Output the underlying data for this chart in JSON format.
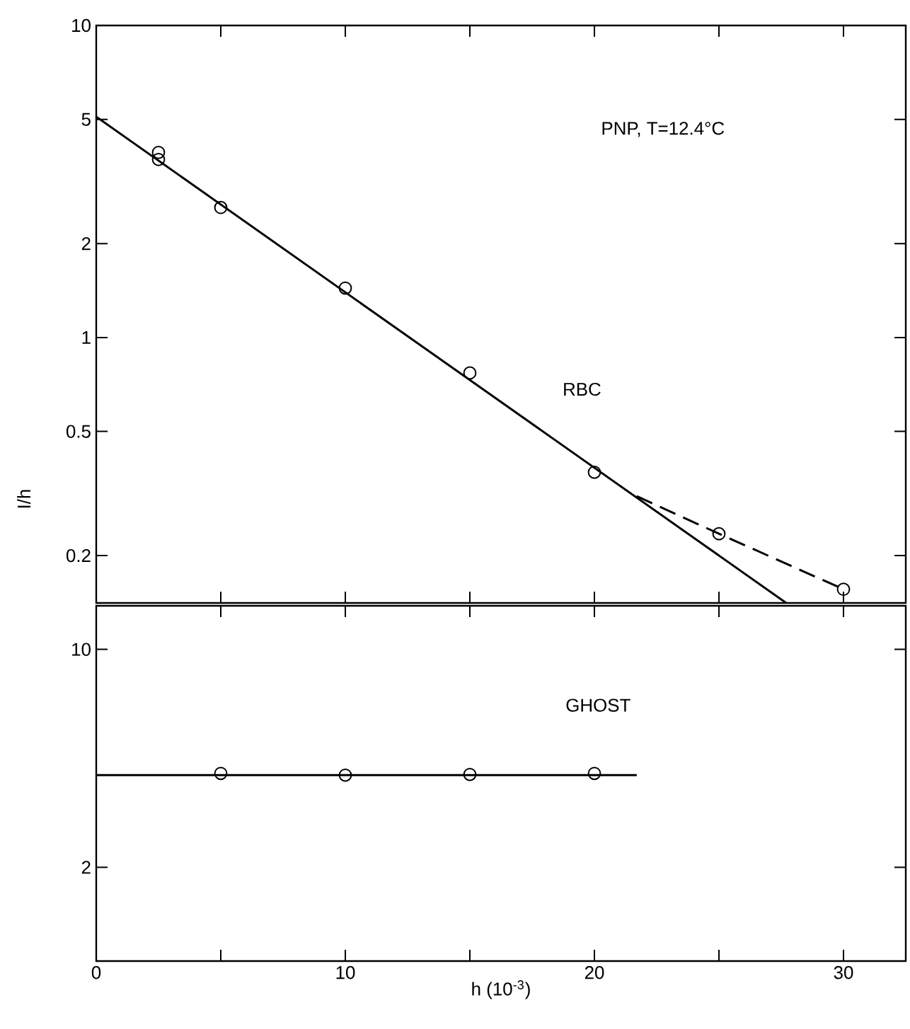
{
  "chart_data": [
    {
      "type": "scatter",
      "ylabel": "I/h",
      "log": "y",
      "xlim": [
        0,
        32.5
      ],
      "ylim": [
        0.141,
        10
      ],
      "xticks": [
        0,
        {
          "value": 5,
          "label": null
        },
        10,
        {
          "value": 15,
          "label": null
        },
        20,
        {
          "value": 25,
          "label": null
        },
        30
      ],
      "yticks": [
        0.2,
        0.5,
        1,
        2,
        5,
        10
      ],
      "tick_labels": "y",
      "annotations": [
        "PNP, T=12.4°C",
        "RBC"
      ],
      "series": [
        {
          "marker": "circle",
          "color": "#000000",
          "x": [
            2.5,
            2.5,
            5,
            10,
            15,
            20,
            25,
            30
          ],
          "values": [
            3.92,
            3.72,
            2.61,
            1.44,
            0.77,
            0.37,
            0.235,
            0.156
          ]
        },
        {
          "type": "line",
          "marker": "none",
          "line_style": "solid",
          "color": "#000000",
          "x": [
            0,
            27.7
          ],
          "values": [
            5.1,
            0.141
          ]
        },
        {
          "type": "line",
          "marker": "none",
          "line_style": "dashed",
          "color": "#000000",
          "x": [
            21.7,
            25,
            30
          ],
          "values": [
            0.31,
            0.235,
            0.156
          ]
        }
      ]
    },
    {
      "type": "scatter",
      "xlabel": "h (10$^{-3}$)",
      "log": "y",
      "xlim": [
        0,
        32.5
      ],
      "ylim": [
        1,
        13.8
      ],
      "xticks": [
        0,
        {
          "value": 5,
          "label": null
        },
        10,
        {
          "value": 15,
          "label": null
        },
        20,
        {
          "value": 25,
          "label": null
        },
        30
      ],
      "yticks": [
        2,
        10
      ],
      "annotations": [
        "GHOST"
      ],
      "series": [
        {
          "marker": "circle",
          "color": "#000000",
          "x": [
            5,
            10,
            15,
            20
          ],
          "values": [
            4.0,
            3.95,
            3.97,
            4.0
          ]
        },
        {
          "type": "line",
          "marker": "none",
          "line_style": "solid",
          "color": "#000000",
          "x": [
            0,
            21.7
          ],
          "values": [
            3.95,
            3.95
          ]
        }
      ]
    }
  ]
}
